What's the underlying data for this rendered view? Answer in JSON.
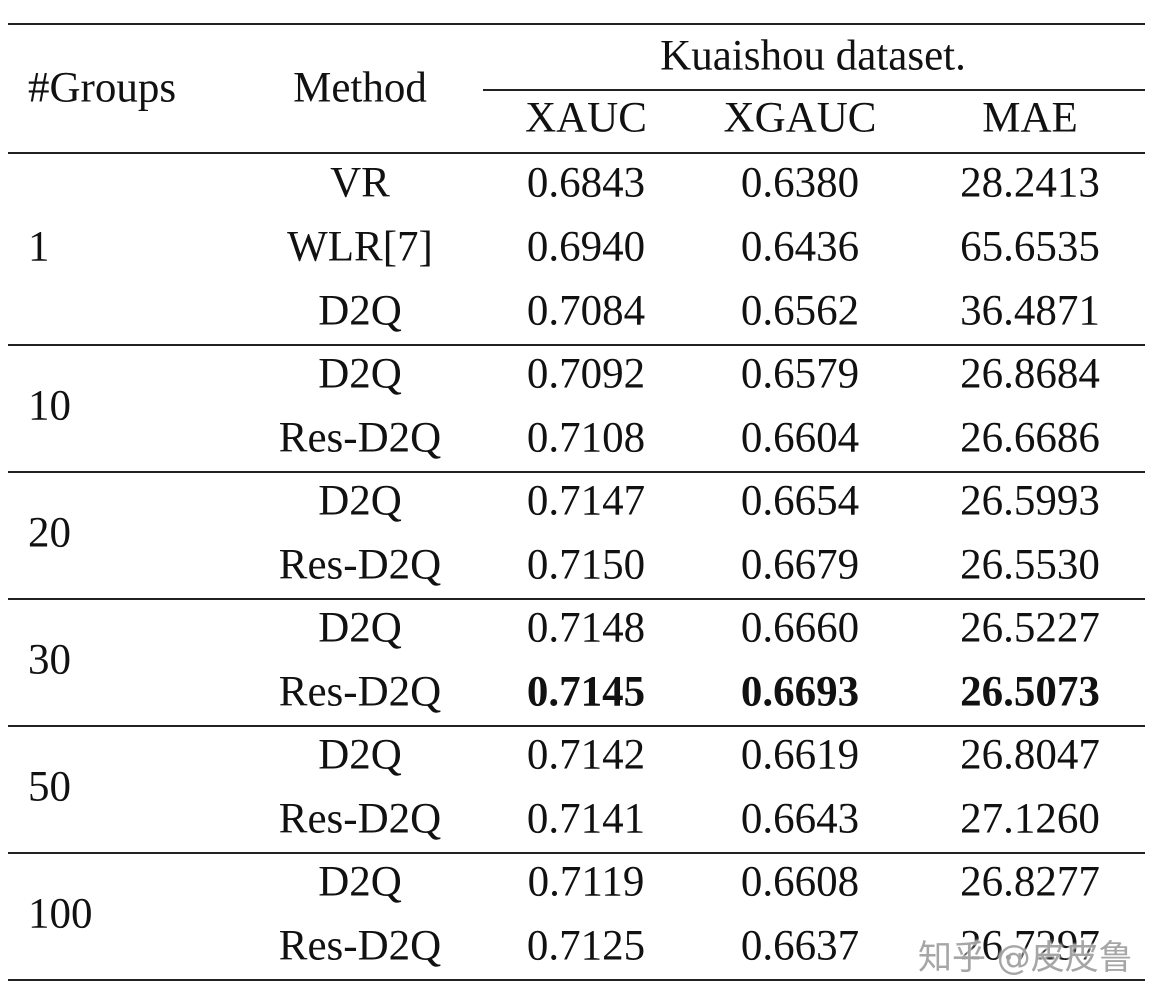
{
  "table": {
    "header": {
      "groups": "#Groups",
      "method": "Method",
      "dataset": "Kuaishou dataset.",
      "metrics": [
        "XAUC",
        "XGAUC",
        "MAE"
      ]
    },
    "groups": [
      {
        "label": "1",
        "rows": [
          {
            "method": "VR",
            "values": [
              "0.6843",
              "0.6380",
              "28.2413"
            ]
          },
          {
            "method": "WLR[7]",
            "values": [
              "0.6940",
              "0.6436",
              "65.6535"
            ]
          },
          {
            "method": "D2Q",
            "values": [
              "0.7084",
              "0.6562",
              "36.4871"
            ]
          }
        ]
      },
      {
        "label": "10",
        "rows": [
          {
            "method": "D2Q",
            "values": [
              "0.7092",
              "0.6579",
              "26.8684"
            ]
          },
          {
            "method": "Res-D2Q",
            "values": [
              "0.7108",
              "0.6604",
              "26.6686"
            ]
          }
        ]
      },
      {
        "label": "20",
        "rows": [
          {
            "method": "D2Q",
            "values": [
              "0.7147",
              "0.6654",
              "26.5993"
            ]
          },
          {
            "method": "Res-D2Q",
            "values": [
              "0.7150",
              "0.6679",
              "26.5530"
            ]
          }
        ]
      },
      {
        "label": "30",
        "rows": [
          {
            "method": "D2Q",
            "values": [
              "0.7148",
              "0.6660",
              "26.5227"
            ]
          },
          {
            "method": "Res-D2Q",
            "values": [
              "0.7145",
              "0.6693",
              "26.5073"
            ],
            "bold": true
          }
        ]
      },
      {
        "label": "50",
        "rows": [
          {
            "method": "D2Q",
            "values": [
              "0.7142",
              "0.6619",
              "26.8047"
            ]
          },
          {
            "method": "Res-D2Q",
            "values": [
              "0.7141",
              "0.6643",
              "27.1260"
            ]
          }
        ]
      },
      {
        "label": "100",
        "rows": [
          {
            "method": "D2Q",
            "values": [
              "0.7119",
              "0.6608",
              "26.8277"
            ]
          },
          {
            "method": "Res-D2Q",
            "values": [
              "0.7125",
              "0.6637",
              "26.7297"
            ]
          }
        ]
      }
    ]
  },
  "watermark": "知乎 @皮皮鲁"
}
